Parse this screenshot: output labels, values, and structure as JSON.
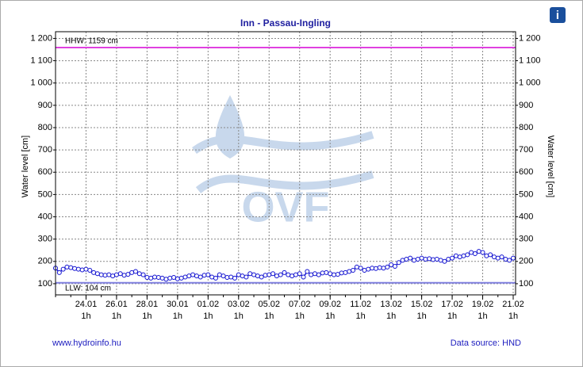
{
  "chart_data": {
    "type": "line",
    "title": "Inn - Passau-Ingling",
    "y_label": "Water level [cm]",
    "y2_label": "Water level [cm]",
    "watermark": "OVF",
    "info_icon": "i",
    "footer_left": "www.hydroinfo.hu",
    "footer_right": "Data source: HND",
    "x_time_label": "1h",
    "categories": [
      null,
      null,
      null,
      null,
      null,
      null,
      null,
      null,
      "24.01",
      null,
      null,
      null,
      null,
      null,
      null,
      null,
      "26.01",
      null,
      null,
      null,
      null,
      null,
      null,
      null,
      "28.01",
      null,
      null,
      null,
      null,
      null,
      null,
      null,
      "30.01",
      null,
      null,
      null,
      null,
      null,
      null,
      null,
      "01.02",
      null,
      null,
      null,
      null,
      null,
      null,
      null,
      "03.02",
      null,
      null,
      null,
      null,
      null,
      null,
      null,
      "05.02",
      null,
      null,
      null,
      null,
      null,
      null,
      null,
      "07.02",
      null,
      null,
      null,
      null,
      null,
      null,
      null,
      "09.02",
      null,
      null,
      null,
      null,
      null,
      null,
      null,
      "11.02",
      null,
      null,
      null,
      null,
      null,
      null,
      null,
      "13.02",
      null,
      null,
      null,
      null,
      null,
      null,
      null,
      "15.02",
      null,
      null,
      null,
      null,
      null,
      null,
      null,
      "17.02",
      null,
      null,
      null,
      null,
      null,
      null,
      null,
      "19.02",
      null,
      null,
      null,
      null,
      null,
      null,
      null,
      "21.02"
    ],
    "series": [
      {
        "name": "Water level",
        "color": "#1010d0",
        "values": [
          170,
          150,
          165,
          175,
          172,
          168,
          165,
          162,
          165,
          160,
          150,
          145,
          140,
          138,
          140,
          135,
          140,
          145,
          138,
          142,
          150,
          155,
          145,
          140,
          128,
          125,
          130,
          128,
          125,
          120,
          125,
          128,
          122,
          125,
          130,
          135,
          140,
          135,
          130,
          138,
          140,
          130,
          125,
          140,
          135,
          128,
          130,
          125,
          140,
          135,
          130,
          145,
          140,
          135,
          130,
          138,
          140,
          145,
          135,
          140,
          150,
          140,
          135,
          140,
          145,
          130,
          155,
          140,
          145,
          140,
          148,
          150,
          145,
          140,
          142,
          148,
          150,
          155,
          160,
          175,
          170,
          160,
          165,
          170,
          168,
          172,
          170,
          175,
          185,
          178,
          195,
          205,
          210,
          215,
          205,
          210,
          215,
          210,
          212,
          208,
          210,
          205,
          200,
          210,
          215,
          225,
          220,
          225,
          230,
          240,
          235,
          245,
          240,
          225,
          230,
          220,
          215,
          220,
          210,
          205,
          215
        ]
      }
    ],
    "hhw": {
      "label": "HHW: 1159 cm",
      "value": 1159,
      "color": "#e040e0"
    },
    "llw": {
      "label": "LLW: 104 cm",
      "value": 104,
      "color": "#8080e0"
    },
    "ylim": [
      50,
      1230
    ],
    "yticks": [
      100,
      200,
      300,
      400,
      500,
      600,
      700,
      800,
      900,
      {
        "value": 1000,
        "label": "1 000"
      },
      {
        "value": 1100,
        "label": "1 100"
      },
      {
        "value": 1200,
        "label": "1 200"
      }
    ],
    "grid": true
  }
}
